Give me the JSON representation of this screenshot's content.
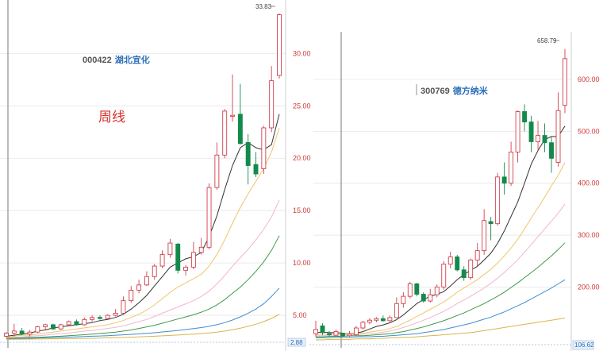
{
  "annotation": {
    "period_label": "周线"
  },
  "colors": {
    "up": "#d0404b",
    "down": "#138a4c",
    "grid": "#e6e6e6",
    "axis_text": "#d03838",
    "ma": [
      "#333333",
      "#f0c56a",
      "#f2b6cf",
      "#3f9a4a",
      "#3f8fd0",
      "#d9b64a"
    ]
  },
  "chart_data": [
    {
      "type": "candlestick",
      "stock_code": "000422",
      "stock_name": "湖北宜化",
      "period": "周线",
      "yticks": [
        5,
        10,
        15,
        20,
        25,
        30
      ],
      "ytick_labels": [
        "5.00",
        "10.00",
        "15.00",
        "20.00",
        "25.00",
        "30.00"
      ],
      "ylim": [
        2.2,
        34.5
      ],
      "peak_label": "33.83",
      "base_label": "2.88",
      "grid": true,
      "candles": [
        {
          "o": 3.0,
          "h": 3.4,
          "l": 2.9,
          "c": 3.3
        },
        {
          "o": 3.3,
          "h": 4.2,
          "l": 3.0,
          "c": 3.5
        },
        {
          "o": 3.5,
          "h": 3.8,
          "l": 3.1,
          "c": 3.2
        },
        {
          "o": 3.2,
          "h": 3.6,
          "l": 3.0,
          "c": 3.4
        },
        {
          "o": 3.4,
          "h": 4.0,
          "l": 3.3,
          "c": 3.9
        },
        {
          "o": 3.9,
          "h": 4.2,
          "l": 3.6,
          "c": 4.1
        },
        {
          "o": 4.1,
          "h": 4.2,
          "l": 3.6,
          "c": 3.7
        },
        {
          "o": 3.7,
          "h": 4.2,
          "l": 3.6,
          "c": 4.1
        },
        {
          "o": 4.1,
          "h": 4.5,
          "l": 4.0,
          "c": 4.4
        },
        {
          "o": 4.4,
          "h": 4.6,
          "l": 4.0,
          "c": 4.1
        },
        {
          "o": 4.1,
          "h": 4.8,
          "l": 4.0,
          "c": 4.6
        },
        {
          "o": 4.6,
          "h": 5.0,
          "l": 4.4,
          "c": 4.8
        },
        {
          "o": 4.8,
          "h": 5.0,
          "l": 4.6,
          "c": 4.7
        },
        {
          "o": 4.7,
          "h": 5.1,
          "l": 4.6,
          "c": 5.0
        },
        {
          "o": 5.0,
          "h": 5.6,
          "l": 4.9,
          "c": 5.2
        },
        {
          "o": 5.2,
          "h": 6.8,
          "l": 5.2,
          "c": 6.4
        },
        {
          "o": 6.4,
          "h": 7.8,
          "l": 6.2,
          "c": 7.4
        },
        {
          "o": 7.4,
          "h": 8.4,
          "l": 7.1,
          "c": 7.9
        },
        {
          "o": 7.9,
          "h": 9.2,
          "l": 7.8,
          "c": 8.7
        },
        {
          "o": 8.7,
          "h": 9.9,
          "l": 8.4,
          "c": 9.7
        },
        {
          "o": 9.7,
          "h": 11.2,
          "l": 9.5,
          "c": 10.8
        },
        {
          "o": 10.8,
          "h": 12.3,
          "l": 10.5,
          "c": 11.9
        },
        {
          "o": 11.8,
          "h": 11.9,
          "l": 9.0,
          "c": 9.3
        },
        {
          "o": 9.3,
          "h": 9.8,
          "l": 8.8,
          "c": 9.6
        },
        {
          "o": 9.6,
          "h": 12.0,
          "l": 9.4,
          "c": 11.0
        },
        {
          "o": 11.0,
          "h": 12.4,
          "l": 10.8,
          "c": 11.5
        },
        {
          "o": 11.5,
          "h": 17.6,
          "l": 11.3,
          "c": 17.2
        },
        {
          "o": 17.2,
          "h": 21.5,
          "l": 17.0,
          "c": 20.3
        },
        {
          "o": 20.3,
          "h": 24.7,
          "l": 20.0,
          "c": 24.5
        },
        {
          "o": 24.0,
          "h": 28.0,
          "l": 23.5,
          "c": 24.1
        },
        {
          "o": 24.2,
          "h": 27.1,
          "l": 21.3,
          "c": 21.4
        },
        {
          "o": 21.5,
          "h": 22.3,
          "l": 17.5,
          "c": 19.3
        },
        {
          "o": 19.4,
          "h": 20.6,
          "l": 18.2,
          "c": 18.5
        },
        {
          "o": 19.0,
          "h": 23.1,
          "l": 18.5,
          "c": 22.9
        },
        {
          "o": 22.9,
          "h": 28.8,
          "l": 22.5,
          "c": 27.4
        },
        {
          "o": 27.9,
          "h": 33.83,
          "l": 27.6,
          "c": 33.7
        }
      ],
      "moving_averages": [
        {
          "color": "#333333",
          "values": [
            3.0,
            3.1,
            3.2,
            3.3,
            3.5,
            3.6,
            3.8,
            3.9,
            4.0,
            4.1,
            4.2,
            4.3,
            4.5,
            4.6,
            4.8,
            5.1,
            5.6,
            6.2,
            6.9,
            7.8,
            8.7,
            9.6,
            10.0,
            10.4,
            10.6,
            11.0,
            12.5,
            14.5,
            17.0,
            19.3,
            21.0,
            21.5,
            21.0,
            20.8,
            21.3,
            24.2
          ]
        },
        {
          "color": "#f0c56a",
          "values": [
            2.9,
            3.0,
            3.1,
            3.1,
            3.2,
            3.3,
            3.4,
            3.5,
            3.6,
            3.7,
            3.8,
            3.9,
            4.0,
            4.1,
            4.3,
            4.5,
            4.8,
            5.1,
            5.5,
            6.0,
            6.6,
            7.2,
            7.7,
            8.1,
            8.5,
            8.9,
            9.7,
            10.8,
            12.2,
            13.8,
            15.3,
            16.6,
            17.8,
            19.0,
            20.6,
            22.9
          ]
        },
        {
          "color": "#f2b6cf",
          "values": [
            2.85,
            2.9,
            2.95,
            3.0,
            3.05,
            3.1,
            3.2,
            3.25,
            3.3,
            3.4,
            3.5,
            3.55,
            3.65,
            3.75,
            3.85,
            4.0,
            4.2,
            4.4,
            4.6,
            4.9,
            5.2,
            5.5,
            5.8,
            6.1,
            6.4,
            6.8,
            7.3,
            8.0,
            8.8,
            9.7,
            10.5,
            11.3,
            12.2,
            13.2,
            14.4,
            16.0
          ]
        },
        {
          "color": "#3f9a4a",
          "values": [
            2.8,
            2.82,
            2.85,
            2.88,
            2.9,
            2.93,
            2.97,
            3.0,
            3.05,
            3.1,
            3.15,
            3.2,
            3.27,
            3.33,
            3.4,
            3.5,
            3.6,
            3.75,
            3.9,
            4.05,
            4.25,
            4.45,
            4.65,
            4.85,
            5.05,
            5.3,
            5.6,
            6.0,
            6.5,
            7.1,
            7.7,
            8.4,
            9.2,
            10.1,
            11.2,
            12.6
          ]
        },
        {
          "color": "#3f8fd0",
          "values": [
            2.75,
            2.77,
            2.79,
            2.81,
            2.83,
            2.85,
            2.87,
            2.9,
            2.92,
            2.95,
            2.98,
            3.0,
            3.03,
            3.06,
            3.1,
            3.14,
            3.18,
            3.23,
            3.28,
            3.34,
            3.41,
            3.48,
            3.56,
            3.64,
            3.73,
            3.83,
            3.95,
            4.1,
            4.3,
            4.55,
            4.85,
            5.2,
            5.6,
            6.1,
            6.8,
            7.6
          ]
        },
        {
          "color": "#d9b64a",
          "values": [
            2.7,
            2.71,
            2.72,
            2.73,
            2.74,
            2.75,
            2.76,
            2.77,
            2.78,
            2.79,
            2.8,
            2.81,
            2.83,
            2.85,
            2.87,
            2.89,
            2.91,
            2.94,
            2.97,
            3.0,
            3.04,
            3.08,
            3.12,
            3.16,
            3.21,
            3.26,
            3.32,
            3.4,
            3.5,
            3.62,
            3.77,
            3.95,
            4.15,
            4.4,
            4.7,
            5.1
          ]
        }
      ]
    },
    {
      "type": "candlestick",
      "stock_code": "300769",
      "stock_name": "德方纳米",
      "yticks": [
        200,
        300,
        400,
        500,
        600
      ],
      "ytick_labels": [
        "200.00",
        "300.00",
        "400.00",
        "500.00",
        "600.00"
      ],
      "ylim": [
        95,
        675
      ],
      "peak_label": "658.79",
      "base_label": "106.62",
      "grid": true,
      "candles": [
        {
          "o": 110,
          "h": 135,
          "l": 104,
          "c": 118
        },
        {
          "o": 125,
          "h": 130,
          "l": 107,
          "c": 112
        },
        {
          "o": 110,
          "h": 115,
          "l": 104,
          "c": 108
        },
        {
          "o": 107,
          "h": 118,
          "l": 105,
          "c": 114
        },
        {
          "o": 110,
          "h": 112,
          "l": 104,
          "c": 106
        },
        {
          "o": 106,
          "h": 115,
          "l": 104,
          "c": 109
        },
        {
          "o": 108,
          "h": 125,
          "l": 106,
          "c": 121
        },
        {
          "o": 121,
          "h": 135,
          "l": 118,
          "c": 132
        },
        {
          "o": 132,
          "h": 140,
          "l": 128,
          "c": 136
        },
        {
          "o": 136,
          "h": 142,
          "l": 132,
          "c": 139
        },
        {
          "o": 139,
          "h": 145,
          "l": 133,
          "c": 135
        },
        {
          "o": 135,
          "h": 145,
          "l": 133,
          "c": 141
        },
        {
          "o": 141,
          "h": 180,
          "l": 140,
          "c": 168
        },
        {
          "o": 168,
          "h": 190,
          "l": 160,
          "c": 182
        },
        {
          "o": 182,
          "h": 210,
          "l": 178,
          "c": 206
        },
        {
          "o": 206,
          "h": 208,
          "l": 182,
          "c": 186
        },
        {
          "o": 186,
          "h": 190,
          "l": 170,
          "c": 173
        },
        {
          "o": 173,
          "h": 196,
          "l": 170,
          "c": 185
        },
        {
          "o": 185,
          "h": 205,
          "l": 180,
          "c": 200
        },
        {
          "o": 200,
          "h": 250,
          "l": 195,
          "c": 244
        },
        {
          "o": 244,
          "h": 268,
          "l": 236,
          "c": 258
        },
        {
          "o": 258,
          "h": 262,
          "l": 230,
          "c": 233
        },
        {
          "o": 233,
          "h": 240,
          "l": 212,
          "c": 218
        },
        {
          "o": 218,
          "h": 255,
          "l": 214,
          "c": 252
        },
        {
          "o": 252,
          "h": 285,
          "l": 240,
          "c": 270
        },
        {
          "o": 270,
          "h": 350,
          "l": 262,
          "c": 328
        },
        {
          "o": 326,
          "h": 335,
          "l": 290,
          "c": 322
        },
        {
          "o": 322,
          "h": 420,
          "l": 318,
          "c": 412
        },
        {
          "o": 412,
          "h": 440,
          "l": 378,
          "c": 400
        },
        {
          "o": 400,
          "h": 480,
          "l": 395,
          "c": 460
        },
        {
          "o": 460,
          "h": 540,
          "l": 440,
          "c": 538
        },
        {
          "o": 538,
          "h": 552,
          "l": 500,
          "c": 518
        },
        {
          "o": 518,
          "h": 530,
          "l": 460,
          "c": 480
        },
        {
          "o": 480,
          "h": 520,
          "l": 465,
          "c": 492
        },
        {
          "o": 492,
          "h": 515,
          "l": 460,
          "c": 478
        },
        {
          "o": 478,
          "h": 490,
          "l": 420,
          "c": 448
        },
        {
          "o": 440,
          "h": 575,
          "l": 432,
          "c": 540
        },
        {
          "o": 550,
          "h": 658.79,
          "l": 535,
          "c": 640
        }
      ],
      "moving_averages": [
        {
          "color": "#333333",
          "values": [
            112,
            113,
            112,
            112,
            111,
            110,
            111,
            114,
            119,
            124,
            127,
            131,
            137,
            146,
            157,
            168,
            176,
            182,
            186,
            191,
            202,
            214,
            224,
            232,
            240,
            252,
            265,
            284,
            308,
            336,
            364,
            400,
            437,
            463,
            484,
            490,
            490,
            510
          ]
        },
        {
          "color": "#f0c56a",
          "values": [
            108,
            109,
            109,
            110,
            110,
            110,
            110,
            111,
            113,
            115,
            117,
            120,
            124,
            130,
            136,
            143,
            150,
            157,
            164,
            171,
            180,
            190,
            198,
            206,
            214,
            224,
            234,
            246,
            260,
            275,
            292,
            312,
            333,
            353,
            373,
            395,
            415,
            440
          ]
        },
        {
          "color": "#f2b6cf",
          "values": [
            106,
            106,
            107,
            107,
            108,
            108,
            108,
            109,
            110,
            111,
            113,
            115,
            118,
            122,
            126,
            131,
            136,
            141,
            147,
            153,
            160,
            168,
            175,
            182,
            190,
            198,
            207,
            217,
            228,
            240,
            253,
            267,
            282,
            297,
            312,
            327,
            342,
            360
          ]
        },
        {
          "color": "#3f9a4a",
          "values": [
            104,
            104,
            105,
            105,
            105,
            106,
            106,
            106,
            107,
            108,
            109,
            110,
            112,
            114,
            117,
            120,
            123,
            127,
            131,
            135,
            140,
            145,
            150,
            156,
            162,
            168,
            175,
            182,
            190,
            199,
            208,
            218,
            228,
            238,
            249,
            260,
            272,
            285
          ]
        },
        {
          "color": "#3f8fd0",
          "values": [
            102,
            102,
            102,
            103,
            103,
            103,
            104,
            104,
            104,
            105,
            105,
            106,
            107,
            108,
            109,
            110,
            112,
            114,
            116,
            118,
            121,
            124,
            127,
            130,
            134,
            138,
            142,
            147,
            152,
            158,
            164,
            170,
            177,
            184,
            191,
            198,
            206,
            214
          ]
        },
        {
          "color": "#d9b64a",
          "values": [
            98,
            98,
            99,
            99,
            99,
            99,
            100,
            100,
            100,
            101,
            101,
            102,
            102,
            103,
            103,
            104,
            105,
            106,
            107,
            108,
            109,
            110,
            111,
            112,
            114,
            116,
            118,
            120,
            122,
            124,
            126,
            128,
            130,
            132,
            134,
            136,
            138,
            140
          ]
        }
      ]
    }
  ]
}
